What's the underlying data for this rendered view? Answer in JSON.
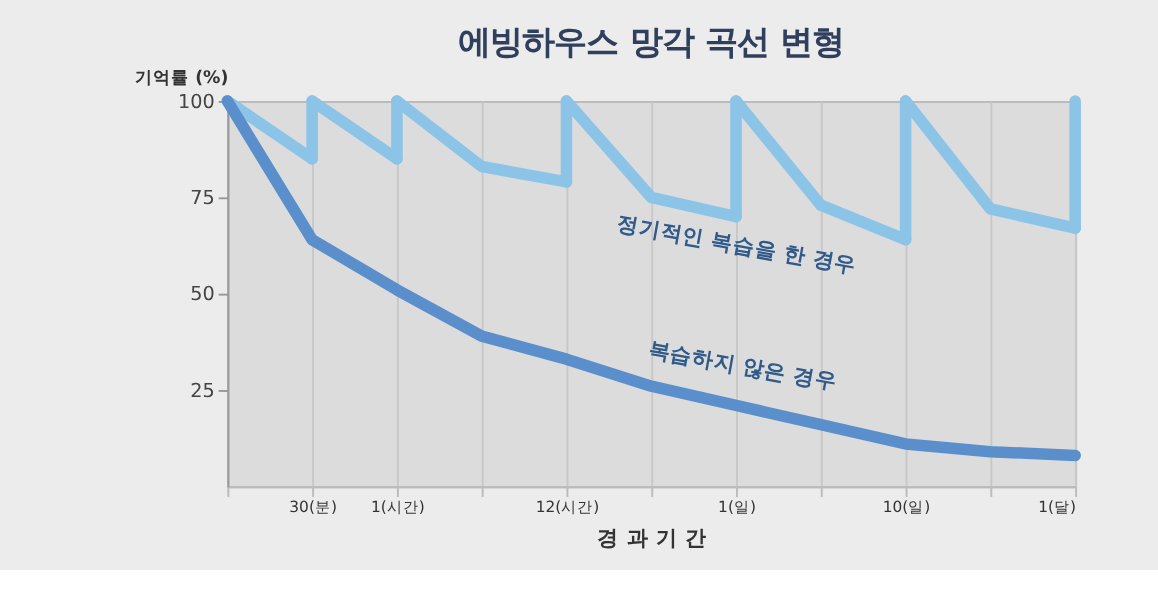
{
  "chart_data": {
    "type": "line",
    "title": "에빙하우스 망각 곡선 변형",
    "xlabel": "경 과 기 간",
    "ylabel": "기억률 (%)",
    "categories": [
      null,
      "30(분)",
      "1(시간)",
      null,
      "12(시간)",
      null,
      "1(일)",
      null,
      "10(일)",
      null,
      "1(달)"
    ],
    "ylim": [
      0,
      100
    ],
    "yticks": [
      25,
      50,
      75,
      100
    ],
    "grid": "x",
    "marker": "none",
    "line_style": "solid",
    "series": [
      {
        "color": "#8cc4e8",
        "values": [
          100,
          85,
          null,
          null,
          null,
          null,
          null,
          null,
          null,
          null,
          null
        ]
      },
      {
        "color": "#8cc4e8",
        "values": [
          null,
          100,
          85,
          null,
          null,
          null,
          null,
          null,
          null,
          null,
          null
        ],
        "errors": [
          null,
          [
            85,
            100
          ],
          null,
          null,
          null,
          null,
          null,
          null,
          null,
          null,
          null
        ]
      },
      {
        "color": "#8cc4e8",
        "values": [
          null,
          null,
          100,
          83,
          79,
          null,
          null,
          null,
          null,
          null,
          null
        ],
        "errors": [
          null,
          null,
          [
            85,
            100
          ],
          null,
          null,
          null,
          null,
          null,
          null,
          null,
          null
        ]
      },
      {
        "name": "정기적인 복습을 한 경우",
        "color": "#8cc4e8",
        "values": [
          null,
          null,
          null,
          null,
          100,
          75,
          70,
          null,
          null,
          null,
          null
        ],
        "errors": [
          null,
          null,
          null,
          null,
          [
            79,
            100
          ],
          null,
          null,
          null,
          null,
          null,
          null
        ]
      },
      {
        "color": "#8cc4e8",
        "values": [
          null,
          null,
          null,
          null,
          null,
          null,
          100,
          73,
          64,
          null,
          null
        ],
        "errors": [
          null,
          null,
          null,
          null,
          null,
          null,
          [
            70,
            100
          ],
          null,
          null,
          null,
          null
        ]
      },
      {
        "color": "#8cc4e8",
        "values": [
          null,
          null,
          null,
          null,
          null,
          null,
          null,
          null,
          100,
          72,
          67
        ],
        "errors": [
          null,
          null,
          null,
          null,
          null,
          null,
          null,
          null,
          [
            64,
            100
          ],
          null,
          [
            67,
            100
          ]
        ]
      },
      {
        "name": "복습하지 않은 경우",
        "color": "#5b8fcc",
        "values": [
          100,
          64,
          51,
          39,
          33,
          26,
          21,
          16,
          11,
          9,
          8
        ]
      }
    ]
  }
}
